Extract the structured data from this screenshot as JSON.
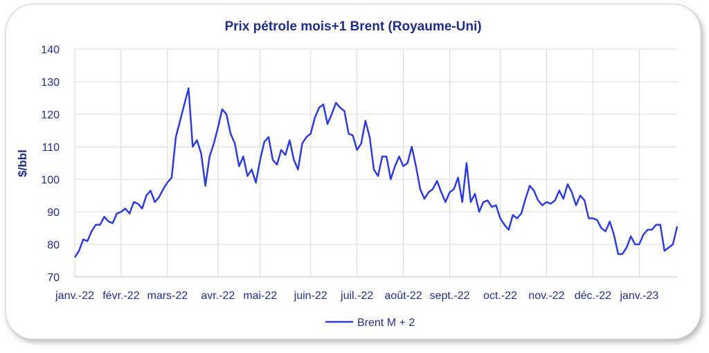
{
  "chart_data": {
    "type": "line",
    "title": "Prix pétrole mois+1 Brent (Royaume-Uni)",
    "y_label": "$/bbl",
    "categories": [
      "janv.-22",
      null,
      null,
      null,
      null,
      null,
      null,
      null,
      null,
      null,
      null,
      "févr.-22",
      null,
      null,
      null,
      null,
      null,
      null,
      null,
      null,
      null,
      null,
      "mars-22",
      null,
      null,
      null,
      null,
      null,
      null,
      null,
      null,
      null,
      null,
      null,
      "avr.-22",
      null,
      null,
      null,
      null,
      null,
      null,
      null,
      null,
      null,
      "mai-22",
      null,
      null,
      null,
      null,
      null,
      null,
      null,
      null,
      null,
      null,
      null,
      "juin-22",
      null,
      null,
      null,
      null,
      null,
      null,
      null,
      null,
      null,
      null,
      "juil.-22",
      null,
      null,
      null,
      null,
      null,
      null,
      null,
      null,
      null,
      null,
      "août-22",
      null,
      null,
      null,
      null,
      null,
      null,
      null,
      null,
      null,
      null,
      "sept.-22",
      null,
      null,
      null,
      null,
      null,
      null,
      null,
      null,
      null,
      null,
      null,
      "oct.-22",
      null,
      null,
      null,
      null,
      null,
      null,
      null,
      null,
      null,
      null,
      "nov.-22",
      null,
      null,
      null,
      null,
      null,
      null,
      null,
      null,
      null,
      null,
      "déc.-22",
      null,
      null,
      null,
      null,
      null,
      null,
      null,
      null,
      null,
      null,
      "janv.-23",
      null,
      null,
      null,
      null,
      null,
      null,
      null,
      null,
      null
    ],
    "series": [
      {
        "name": "Brent M + 2",
        "color": "#2b3be0",
        "values": [
          76,
          78,
          81.5,
          81,
          84,
          86,
          86,
          88.5,
          87,
          86.5,
          89.5,
          90,
          91,
          89.5,
          93,
          92.5,
          91,
          95,
          96.5,
          93,
          94.5,
          97,
          99,
          100.5,
          113,
          118,
          123,
          128,
          110,
          112,
          108,
          98,
          107,
          111,
          116,
          121.5,
          120,
          114,
          111,
          104,
          107,
          101,
          103,
          99,
          106,
          111.5,
          113,
          106,
          104.5,
          109,
          107.5,
          112,
          106,
          103,
          111,
          113,
          114,
          119,
          122,
          123,
          117,
          120,
          123.5,
          122,
          121,
          114,
          113.5,
          109,
          111,
          118,
          113,
          103,
          101,
          107,
          107,
          100,
          104,
          107,
          104,
          105,
          110,
          104,
          97,
          94,
          96,
          97,
          99.5,
          96,
          93,
          96,
          97,
          100.5,
          93,
          105,
          93,
          95.5,
          90,
          93,
          93.5,
          91.5,
          92,
          88,
          86,
          84.5,
          89,
          88,
          89.5,
          94,
          98,
          96.5,
          93.5,
          92,
          93,
          92.5,
          93.5,
          96.5,
          94,
          98.5,
          96,
          92,
          95,
          93.5,
          88,
          88,
          87.5,
          85,
          84,
          87,
          83,
          77,
          77,
          79,
          82.5,
          80,
          80,
          83,
          84.5,
          84.5,
          86,
          86,
          78,
          79,
          80,
          85.5
        ]
      }
    ],
    "ylim": [
      70,
      140
    ],
    "yticks": [
      70,
      80,
      90,
      100,
      110,
      120,
      130,
      140
    ],
    "grid": true
  }
}
